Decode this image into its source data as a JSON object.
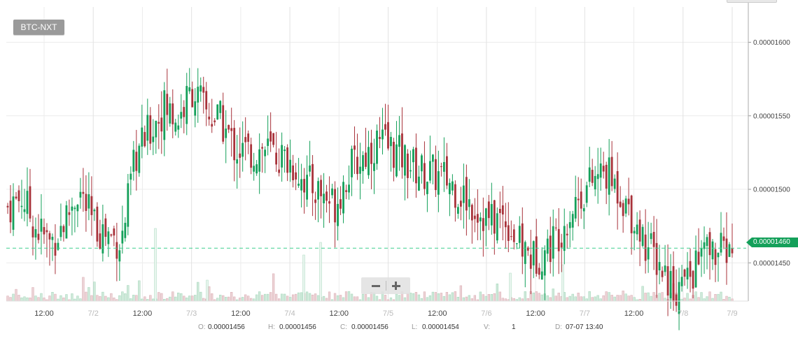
{
  "pair_button": "BTC-NXT",
  "zoom": {
    "minus_icon": "minus-icon",
    "plus_icon": "plus-icon"
  },
  "last_price": "0.00001460",
  "ohlc": {
    "o_label": "O:",
    "o_value": "0.00001456",
    "h_label": "H:",
    "h_value": "0.00001456",
    "c_label": "C:",
    "c_value": "0.00001456",
    "l_label": "L:",
    "l_value": "0.00001454",
    "v_label": "V:",
    "v_value": "1",
    "d_label": "D:",
    "d_value": "07-07 13:40"
  },
  "colors": {
    "up": "#14a05a",
    "down": "#a8323a",
    "up_volume": "#cfe9da",
    "down_volume": "#ecd3d6",
    "last_line": "#3fcf8e"
  },
  "chart_data": {
    "type": "candlestick",
    "y_ticks": [
      "0.00001600",
      "0.00001550",
      "0.00001500",
      "0.00001450"
    ],
    "y_range": [
      1.424e-05,
      1.624e-05
    ],
    "x_ticks": [
      {
        "label": "12:00",
        "muted": false
      },
      {
        "label": "7/2",
        "muted": true
      },
      {
        "label": "12:00",
        "muted": false
      },
      {
        "label": "7/3",
        "muted": true
      },
      {
        "label": "12:00",
        "muted": false
      },
      {
        "label": "7/4",
        "muted": true
      },
      {
        "label": "12:00",
        "muted": false
      },
      {
        "label": "7/5",
        "muted": true
      },
      {
        "label": "12:00",
        "muted": false
      },
      {
        "label": "7/6",
        "muted": true
      },
      {
        "label": "12:00",
        "muted": false
      },
      {
        "label": "7/7",
        "muted": true
      },
      {
        "label": "12:00",
        "muted": false
      },
      {
        "label": "7/8",
        "muted": true
      },
      {
        "label": "7/9",
        "muted": true
      }
    ],
    "last_price": 1.46e-05,
    "close_anchors": [
      1.488e-05,
      1.495e-05,
      1.474e-05,
      1.463e-05,
      1.478e-05,
      1.5e-05,
      1.476e-05,
      1.47e-05,
      1.464e-05,
      1.522e-05,
      1.54e-05,
      1.556e-05,
      1.548e-05,
      1.568e-05,
      1.552e-05,
      1.546e-05,
      1.528e-05,
      1.524e-05,
      1.528e-05,
      1.523e-05,
      1.518e-05,
      1.505e-05,
      1.498e-05,
      1.49e-05,
      1.512e-05,
      1.522e-05,
      1.532e-05,
      1.528e-05,
      1.52e-05,
      1.512e-05,
      1.51e-05,
      1.506e-05,
      1.496e-05,
      1.487e-05,
      1.478e-05,
      1.482e-05,
      1.462e-05,
      1.453e-05,
      1.46e-05,
      1.474e-05,
      1.492e-05,
      1.504e-05,
      1.512e-05,
      1.5e-05,
      1.482e-05,
      1.462e-05,
      1.448e-05,
      1.432e-05,
      1.44e-05,
      1.458e-05,
      1.456e-05,
      1.46e-05
    ]
  }
}
